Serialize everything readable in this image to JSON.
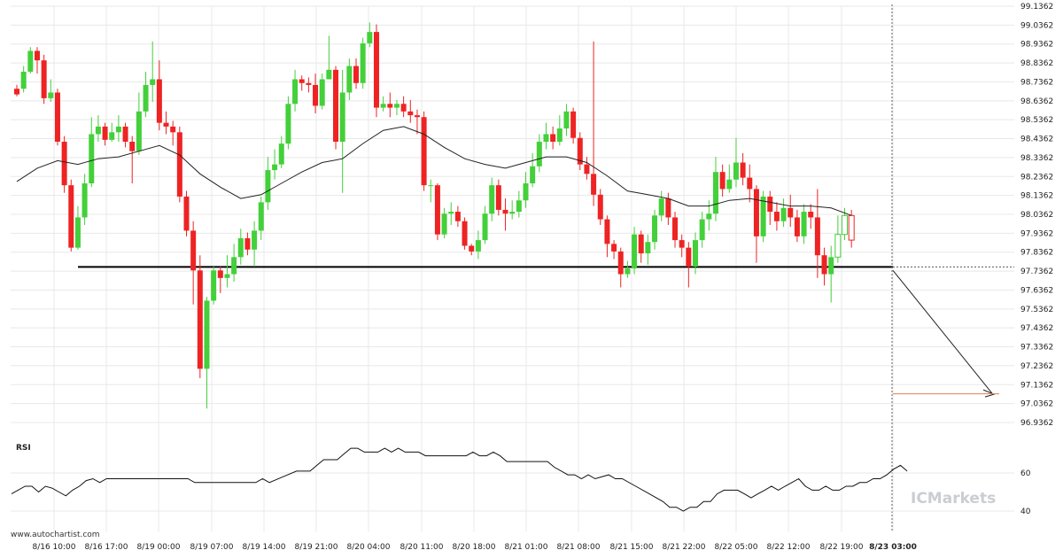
{
  "chart_data": {
    "type": "candlestick",
    "price_axis": {
      "ylim": [
        96.88,
        99.15
      ],
      "ticks": [
        "99.1362",
        "99.0362",
        "98.9362",
        "98.8362",
        "98.7362",
        "98.6362",
        "98.5362",
        "98.4362",
        "98.3362",
        "98.2362",
        "98.1362",
        "98.0362",
        "97.9362",
        "97.8362",
        "97.7362",
        "97.6362",
        "97.5362",
        "97.4362",
        "97.3362",
        "97.2362",
        "97.1362",
        "97.0362",
        "96.9362"
      ]
    },
    "x_ticks": [
      "8/16 10:00",
      "8/16 17:00",
      "8/19 00:00",
      "8/19 07:00",
      "8/19 14:00",
      "8/19 21:00",
      "8/20 04:00",
      "8/20 11:00",
      "8/20 18:00",
      "8/21 01:00",
      "8/21 08:00",
      "8/21 15:00",
      "8/21 22:00",
      "8/22 05:00",
      "8/22 12:00",
      "8/22 19:00",
      "8/23 03:00"
    ],
    "x_ticks_bold": [
      "8/23 03:00"
    ],
    "candles": [
      [
        98.7,
        98.67,
        98.72,
        98.66
      ],
      [
        98.7,
        98.79,
        98.82,
        98.68
      ],
      [
        98.79,
        98.9,
        98.92,
        98.78
      ],
      [
        98.9,
        98.85,
        98.92,
        98.78
      ],
      [
        98.85,
        98.65,
        98.88,
        98.62
      ],
      [
        98.65,
        98.68,
        98.75,
        98.63
      ],
      [
        98.68,
        98.42,
        98.7,
        98.4
      ],
      [
        98.42,
        98.19,
        98.45,
        98.15
      ],
      [
        98.19,
        97.86,
        98.22,
        97.84
      ],
      [
        97.86,
        98.02,
        98.08,
        97.85
      ],
      [
        98.02,
        98.2,
        98.25,
        97.98
      ],
      [
        98.2,
        98.46,
        98.55,
        98.18
      ],
      [
        98.46,
        98.5,
        98.56,
        98.42
      ],
      [
        98.5,
        98.43,
        98.52,
        98.4
      ],
      [
        98.43,
        98.47,
        98.52,
        98.42
      ],
      [
        98.47,
        98.5,
        98.56,
        98.42
      ],
      [
        98.5,
        98.42,
        98.52,
        98.39
      ],
      [
        98.42,
        98.37,
        98.45,
        98.2
      ],
      [
        98.37,
        98.58,
        98.68,
        98.35
      ],
      [
        98.58,
        98.72,
        98.79,
        98.55
      ],
      [
        98.72,
        98.75,
        98.95,
        98.63
      ],
      [
        98.75,
        98.52,
        98.85,
        98.48
      ],
      [
        98.52,
        98.5,
        98.58,
        98.46
      ],
      [
        98.5,
        98.47,
        98.53,
        98.4
      ],
      [
        98.47,
        98.13,
        98.5,
        98.1
      ],
      [
        98.13,
        97.95,
        98.16,
        97.92
      ],
      [
        97.95,
        97.74,
        98.0,
        97.56
      ],
      [
        97.74,
        97.22,
        97.82,
        97.17
      ],
      [
        97.22,
        97.58,
        97.6,
        97.01
      ],
      [
        97.58,
        97.74,
        97.76,
        97.56
      ],
      [
        97.74,
        97.7,
        97.76,
        97.62
      ],
      [
        97.7,
        97.72,
        97.82,
        97.65
      ],
      [
        97.72,
        97.81,
        97.88,
        97.68
      ],
      [
        97.81,
        97.91,
        97.96,
        97.77
      ],
      [
        97.91,
        97.85,
        97.94,
        97.82
      ],
      [
        97.85,
        97.95,
        98.0,
        97.76
      ],
      [
        97.95,
        98.1,
        98.13,
        97.9
      ],
      [
        98.1,
        98.27,
        98.34,
        98.06
      ],
      [
        98.27,
        98.3,
        98.38,
        98.22
      ],
      [
        98.3,
        98.41,
        98.45,
        98.28
      ],
      [
        98.41,
        98.62,
        98.66,
        98.38
      ],
      [
        98.62,
        98.75,
        98.8,
        98.58
      ],
      [
        98.75,
        98.73,
        98.77,
        98.69
      ],
      [
        98.73,
        98.72,
        98.76,
        98.68
      ],
      [
        98.72,
        98.61,
        98.78,
        98.57
      ],
      [
        98.61,
        98.75,
        98.78,
        98.59
      ],
      [
        98.75,
        98.8,
        98.98,
        98.76
      ],
      [
        98.8,
        98.42,
        98.82,
        98.38
      ],
      [
        98.42,
        98.68,
        98.8,
        98.15
      ],
      [
        98.68,
        98.82,
        98.86,
        98.64
      ],
      [
        98.82,
        98.73,
        98.86,
        98.7
      ],
      [
        98.73,
        98.94,
        98.97,
        98.7
      ],
      [
        98.94,
        99.0,
        99.05,
        98.92
      ],
      [
        99.0,
        98.6,
        99.04,
        98.55
      ],
      [
        98.6,
        98.62,
        98.66,
        98.58
      ],
      [
        98.62,
        98.6,
        98.68,
        98.55
      ],
      [
        98.6,
        98.62,
        98.64,
        98.56
      ],
      [
        98.62,
        98.58,
        98.66,
        98.55
      ],
      [
        98.58,
        98.56,
        98.64,
        98.52
      ],
      [
        98.56,
        98.55,
        98.59,
        98.46
      ],
      [
        98.55,
        98.19,
        98.58,
        98.16
      ],
      [
        98.19,
        98.19,
        98.22,
        98.1
      ],
      [
        98.19,
        97.93,
        98.2,
        97.9
      ],
      [
        97.93,
        98.04,
        98.07,
        97.91
      ],
      [
        98.04,
        98.05,
        98.1,
        97.98
      ],
      [
        98.05,
        98.0,
        98.08,
        97.97
      ],
      [
        98.0,
        97.87,
        98.02,
        97.85
      ],
      [
        97.87,
        97.84,
        97.88,
        97.82
      ],
      [
        97.84,
        97.9,
        97.95,
        97.8
      ],
      [
        97.9,
        98.04,
        98.08,
        97.88
      ],
      [
        98.04,
        98.19,
        98.23,
        98.0
      ],
      [
        98.19,
        98.06,
        98.22,
        98.03
      ],
      [
        98.06,
        98.04,
        98.12,
        97.95
      ],
      [
        98.04,
        98.05,
        98.11,
        98.01
      ],
      [
        98.05,
        98.11,
        98.16,
        98.02
      ],
      [
        98.11,
        98.2,
        98.26,
        98.07
      ],
      [
        98.2,
        98.29,
        98.36,
        98.18
      ],
      [
        98.29,
        98.42,
        98.46,
        98.26
      ],
      [
        98.42,
        98.46,
        98.52,
        98.38
      ],
      [
        98.46,
        98.42,
        98.5,
        98.38
      ],
      [
        98.42,
        98.49,
        98.56,
        98.4
      ],
      [
        98.49,
        98.58,
        98.62,
        98.45
      ],
      [
        98.58,
        98.44,
        98.6,
        98.41
      ],
      [
        98.44,
        98.3,
        98.47,
        98.27
      ],
      [
        98.3,
        98.25,
        98.34,
        98.22
      ],
      [
        98.25,
        98.14,
        98.95,
        98.08
      ],
      [
        98.14,
        98.01,
        98.17,
        97.98
      ],
      [
        98.01,
        97.88,
        98.03,
        97.81
      ],
      [
        97.88,
        97.84,
        97.9,
        97.8
      ],
      [
        97.84,
        97.72,
        97.86,
        97.65
      ],
      [
        97.72,
        97.75,
        97.79,
        97.7
      ],
      [
        97.75,
        97.93,
        97.97,
        97.72
      ],
      [
        97.93,
        97.83,
        97.95,
        97.78
      ],
      [
        97.83,
        97.89,
        97.93,
        97.77
      ],
      [
        97.89,
        98.03,
        98.06,
        97.85
      ],
      [
        98.03,
        98.12,
        98.16,
        98.0
      ],
      [
        98.12,
        98.02,
        98.15,
        97.98
      ],
      [
        98.02,
        97.9,
        98.05,
        97.86
      ],
      [
        97.9,
        97.86,
        97.93,
        97.81
      ],
      [
        97.86,
        97.76,
        97.89,
        97.65
      ],
      [
        97.76,
        97.9,
        97.94,
        97.72
      ],
      [
        97.9,
        98.01,
        98.05,
        97.86
      ],
      [
        98.01,
        98.04,
        98.11,
        97.95
      ],
      [
        98.04,
        98.26,
        98.34,
        98.0
      ],
      [
        98.26,
        98.17,
        98.3,
        98.13
      ],
      [
        98.17,
        98.22,
        98.3,
        98.15
      ],
      [
        98.22,
        98.31,
        98.44,
        98.18
      ],
      [
        98.31,
        98.23,
        98.36,
        98.19
      ],
      [
        98.23,
        98.17,
        98.3,
        98.1
      ],
      [
        98.17,
        97.92,
        98.19,
        97.78
      ],
      [
        97.92,
        98.13,
        98.16,
        97.89
      ],
      [
        98.13,
        98.05,
        98.16,
        97.98
      ],
      [
        98.05,
        98.0,
        98.1,
        97.95
      ],
      [
        98.0,
        98.07,
        98.12,
        97.97
      ],
      [
        98.07,
        98.02,
        98.14,
        97.97
      ],
      [
        98.02,
        97.92,
        98.06,
        97.89
      ],
      [
        97.92,
        98.05,
        98.09,
        97.88
      ],
      [
        98.05,
        98.02,
        98.09,
        97.96
      ],
      [
        98.02,
        97.82,
        98.17,
        97.7
      ],
      [
        97.82,
        97.72,
        97.86,
        97.66
      ],
      [
        97.72,
        97.81,
        97.87,
        97.57
      ],
      [
        97.81,
        97.93,
        98.03,
        97.78
      ],
      [
        97.93,
        98.03,
        98.07,
        97.9
      ],
      [
        98.03,
        97.9,
        98.06,
        97.86
      ]
    ],
    "moving_average": [
      [
        0,
        98.21
      ],
      [
        3,
        98.28
      ],
      [
        6,
        98.32
      ],
      [
        9,
        98.3
      ],
      [
        12,
        98.33
      ],
      [
        15,
        98.34
      ],
      [
        18,
        98.37
      ],
      [
        21,
        98.4
      ],
      [
        24,
        98.35
      ],
      [
        27,
        98.25
      ],
      [
        30,
        98.18
      ],
      [
        33,
        98.12
      ],
      [
        36,
        98.14
      ],
      [
        39,
        98.2
      ],
      [
        42,
        98.26
      ],
      [
        45,
        98.31
      ],
      [
        48,
        98.33
      ],
      [
        51,
        98.41
      ],
      [
        54,
        98.48
      ],
      [
        57,
        98.5
      ],
      [
        60,
        98.46
      ],
      [
        63,
        98.39
      ],
      [
        66,
        98.33
      ],
      [
        69,
        98.3
      ],
      [
        72,
        98.28
      ],
      [
        75,
        98.31
      ],
      [
        78,
        98.34
      ],
      [
        81,
        98.34
      ],
      [
        84,
        98.31
      ],
      [
        87,
        98.24
      ],
      [
        90,
        98.16
      ],
      [
        93,
        98.14
      ],
      [
        96,
        98.12
      ],
      [
        99,
        98.08
      ],
      [
        102,
        98.08
      ],
      [
        105,
        98.11
      ],
      [
        108,
        98.12
      ],
      [
        111,
        98.1
      ],
      [
        114,
        98.08
      ],
      [
        117,
        98.08
      ],
      [
        120,
        98.07
      ],
      [
        123,
        98.03
      ]
    ],
    "rsi": {
      "label": "RSI",
      "ylim": [
        30,
        80
      ],
      "ticks": [
        "60",
        "40"
      ],
      "values": [
        [
          0,
          49
        ],
        [
          2,
          53
        ],
        [
          3,
          53
        ],
        [
          4,
          50
        ],
        [
          5,
          53
        ],
        [
          6,
          52
        ],
        [
          7,
          50
        ],
        [
          8,
          48
        ],
        [
          9,
          51
        ],
        [
          10,
          53
        ],
        [
          11,
          56
        ],
        [
          12,
          57
        ],
        [
          13,
          55
        ],
        [
          14,
          57
        ],
        [
          16,
          57
        ],
        [
          18,
          57
        ],
        [
          20,
          57
        ],
        [
          22,
          57
        ],
        [
          24,
          57
        ],
        [
          26,
          57
        ],
        [
          27,
          55
        ],
        [
          30,
          55
        ],
        [
          33,
          55
        ],
        [
          36,
          55
        ],
        [
          37,
          57
        ],
        [
          38,
          55
        ],
        [
          40,
          58
        ],
        [
          42,
          61
        ],
        [
          44,
          61
        ],
        [
          45,
          64
        ],
        [
          46,
          67
        ],
        [
          48,
          67
        ],
        [
          49,
          70
        ],
        [
          50,
          73
        ],
        [
          51,
          73
        ],
        [
          52,
          71
        ],
        [
          54,
          71
        ],
        [
          55,
          73
        ],
        [
          56,
          71
        ],
        [
          57,
          73
        ],
        [
          58,
          71
        ],
        [
          60,
          71
        ],
        [
          61,
          69
        ],
        [
          63,
          69
        ],
        [
          65,
          69
        ],
        [
          67,
          69
        ],
        [
          68,
          71
        ],
        [
          69,
          69
        ],
        [
          70,
          69
        ],
        [
          71,
          71
        ],
        [
          72,
          69
        ],
        [
          73,
          66
        ],
        [
          75,
          66
        ],
        [
          77,
          66
        ],
        [
          79,
          66
        ],
        [
          80,
          63
        ],
        [
          82,
          59
        ],
        [
          83,
          59
        ],
        [
          84,
          57
        ],
        [
          85,
          59
        ],
        [
          86,
          57
        ],
        [
          88,
          59
        ],
        [
          89,
          57
        ],
        [
          90,
          57
        ],
        [
          92,
          53
        ],
        [
          94,
          49
        ],
        [
          96,
          45
        ],
        [
          97,
          42
        ],
        [
          98,
          42
        ],
        [
          99,
          40
        ],
        [
          100,
          42
        ],
        [
          101,
          42
        ],
        [
          102,
          45
        ],
        [
          103,
          45
        ],
        [
          104,
          49
        ],
        [
          105,
          51
        ],
        [
          106,
          51
        ],
        [
          107,
          51
        ],
        [
          108,
          49
        ],
        [
          109,
          47
        ],
        [
          110,
          49
        ],
        [
          111,
          51
        ],
        [
          112,
          53
        ],
        [
          113,
          51
        ],
        [
          114,
          53
        ],
        [
          115,
          55
        ],
        [
          116,
          57
        ],
        [
          117,
          53
        ],
        [
          118,
          51
        ],
        [
          119,
          51
        ],
        [
          120,
          53
        ],
        [
          121,
          51
        ],
        [
          122,
          51
        ],
        [
          123,
          53
        ],
        [
          124,
          53
        ],
        [
          125,
          55
        ],
        [
          126,
          55
        ],
        [
          127,
          57
        ],
        [
          128,
          57
        ],
        [
          129,
          59
        ],
        [
          130,
          62
        ],
        [
          131,
          64
        ],
        [
          132,
          61
        ]
      ]
    },
    "support_level": 97.758,
    "projection": {
      "from_price": 97.74,
      "to_price": 97.09
    },
    "vertical_marker": "8/23 03:00",
    "colors": {
      "up": "#43d03a",
      "down": "#ee2323",
      "up_last": "#43d03a",
      "down_last": "#ee2323",
      "support": "#000000",
      "target": "#e08050",
      "ma": "#222222",
      "grid": "#e8e8e8"
    }
  },
  "footer": {
    "source": "www.autochartist.com",
    "logo": "ICMarkets"
  }
}
